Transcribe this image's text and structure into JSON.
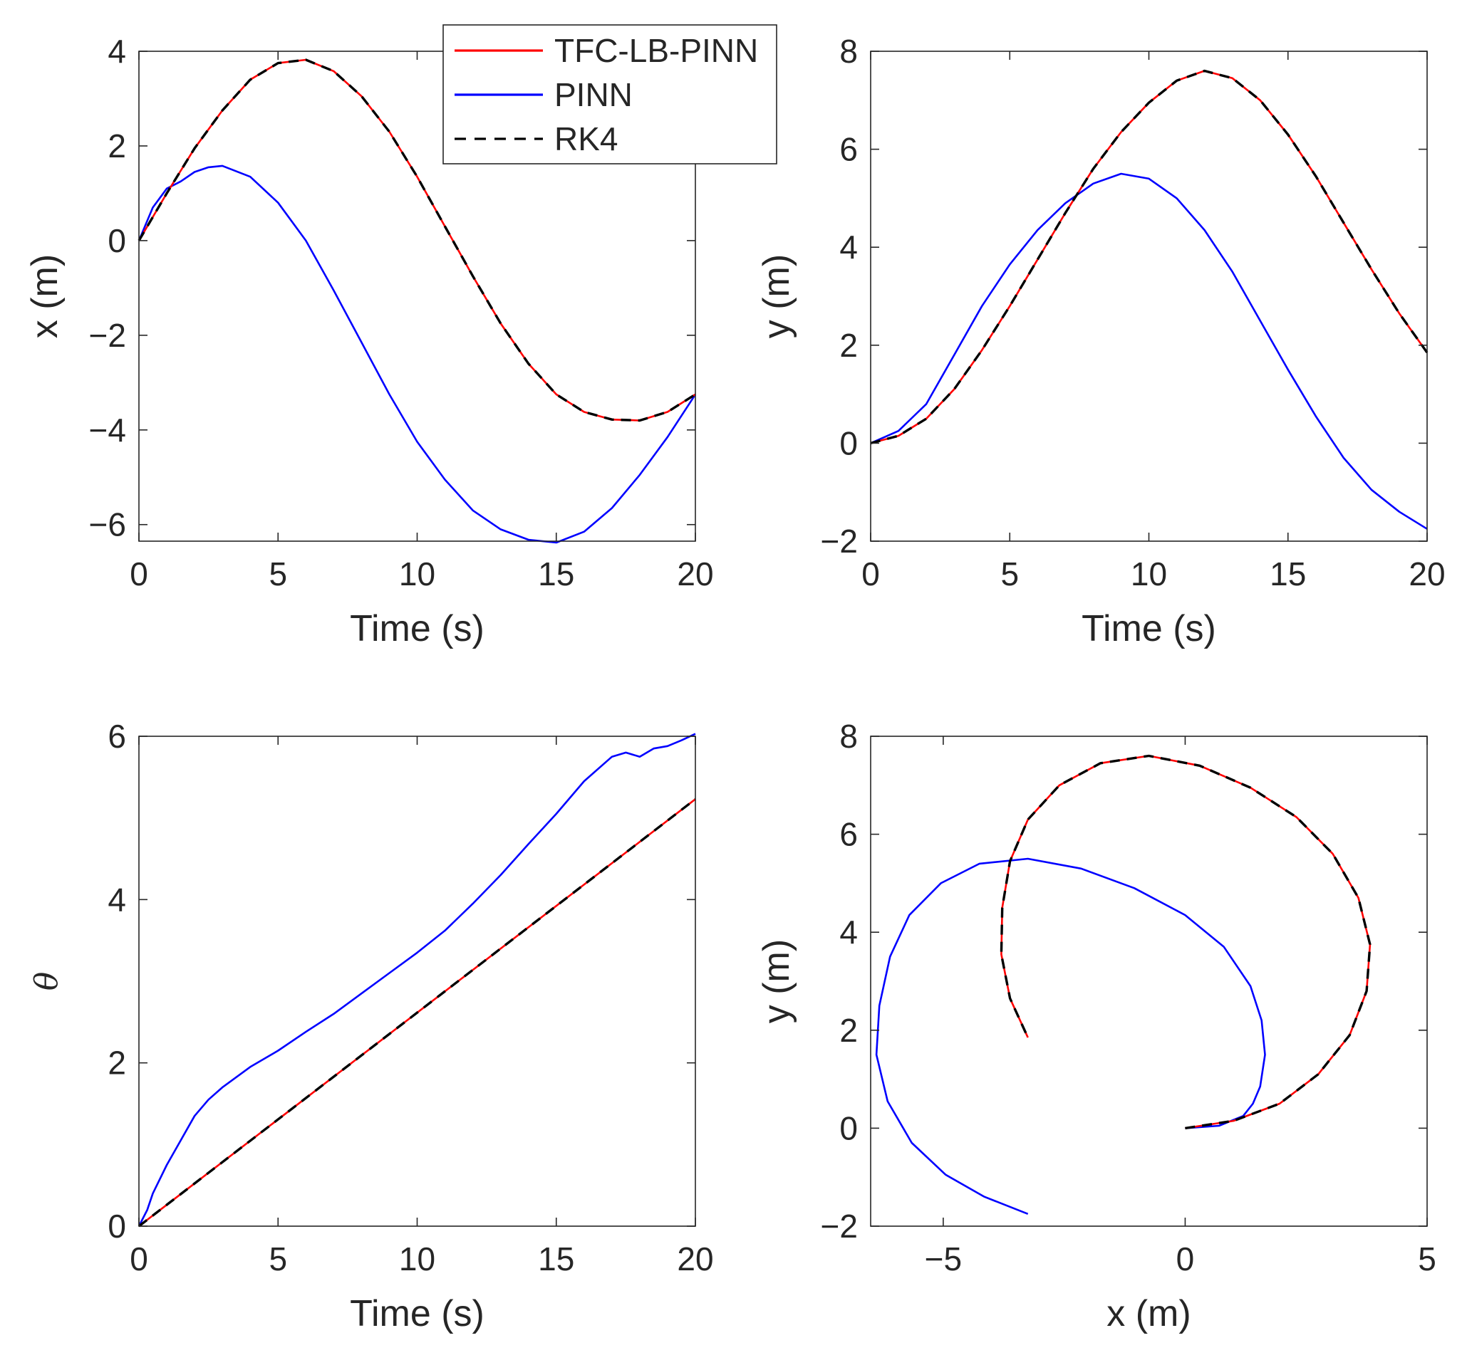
{
  "series_styles": [
    {
      "name": "TFC-LB-PINN",
      "color": "#ff0000",
      "dash": "solid"
    },
    {
      "name": "PINN",
      "color": "#0000ff",
      "dash": "solid"
    },
    {
      "name": "RK4",
      "color": "#000000",
      "dash": "dashed"
    }
  ],
  "chart_data": [
    {
      "type": "line",
      "id": "x-vs-time",
      "xlabel": "Time (s)",
      "ylabel": "x (m)",
      "xlim": [
        0,
        20
      ],
      "ylim": [
        -6.35,
        4
      ],
      "xticks": [
        0,
        5,
        10,
        15,
        20
      ],
      "yticks": [
        -6,
        -4,
        -2,
        0,
        2,
        4
      ],
      "xtick_labels": [
        "0",
        "5",
        "10",
        "15",
        "20"
      ],
      "ytick_labels": [
        "−6",
        "−4",
        "−2",
        "0",
        "2",
        "4"
      ],
      "legend": {
        "location": "top-right",
        "entries": [
          "TFC-LB-PINN",
          "PINN",
          "RK4"
        ]
      },
      "series": [
        {
          "name": "TFC-LB-PINN",
          "x": [
            0,
            1,
            2,
            3,
            4,
            5,
            6,
            7,
            8,
            9,
            10,
            11,
            12,
            13,
            14,
            15,
            16,
            17,
            18,
            19,
            20
          ],
          "y": [
            0,
            1.0,
            1.95,
            2.75,
            3.4,
            3.75,
            3.82,
            3.58,
            3.05,
            2.3,
            1.35,
            0.3,
            -0.75,
            -1.75,
            -2.6,
            -3.25,
            -3.62,
            -3.78,
            -3.8,
            -3.62,
            -3.25
          ]
        },
        {
          "name": "PINN",
          "x": [
            0,
            0.5,
            1,
            1.5,
            2,
            2.5,
            3,
            4,
            5,
            6,
            7,
            8,
            9,
            10,
            11,
            12,
            13,
            14,
            15,
            16,
            17,
            18,
            19,
            20
          ],
          "y": [
            0,
            0.7,
            1.1,
            1.25,
            1.45,
            1.55,
            1.58,
            1.35,
            0.8,
            0.0,
            -1.05,
            -2.15,
            -3.25,
            -4.25,
            -5.05,
            -5.7,
            -6.1,
            -6.32,
            -6.38,
            -6.15,
            -5.65,
            -4.95,
            -4.15,
            -3.25
          ]
        },
        {
          "name": "RK4",
          "x": [
            0,
            1,
            2,
            3,
            4,
            5,
            6,
            7,
            8,
            9,
            10,
            11,
            12,
            13,
            14,
            15,
            16,
            17,
            18,
            19,
            20
          ],
          "y": [
            0,
            1.0,
            1.95,
            2.75,
            3.4,
            3.75,
            3.82,
            3.58,
            3.05,
            2.3,
            1.35,
            0.3,
            -0.75,
            -1.75,
            -2.6,
            -3.25,
            -3.62,
            -3.78,
            -3.8,
            -3.62,
            -3.25
          ]
        }
      ]
    },
    {
      "type": "line",
      "id": "y-vs-time",
      "xlabel": "Time (s)",
      "ylabel": "y (m)",
      "xlim": [
        0,
        20
      ],
      "ylim": [
        -2,
        8
      ],
      "xticks": [
        0,
        5,
        10,
        15,
        20
      ],
      "yticks": [
        -2,
        0,
        2,
        4,
        6,
        8
      ],
      "xtick_labels": [
        "0",
        "5",
        "10",
        "15",
        "20"
      ],
      "ytick_labels": [
        "−2",
        "0",
        "2",
        "4",
        "6",
        "8"
      ],
      "series": [
        {
          "name": "TFC-LB-PINN",
          "x": [
            0,
            1,
            2,
            3,
            4,
            5,
            6,
            7,
            8,
            9,
            10,
            11,
            12,
            13,
            14,
            15,
            16,
            17,
            18,
            19,
            20
          ],
          "y": [
            0,
            0.15,
            0.5,
            1.1,
            1.9,
            2.8,
            3.75,
            4.7,
            5.6,
            6.35,
            6.95,
            7.4,
            7.6,
            7.45,
            7.0,
            6.3,
            5.45,
            4.5,
            3.55,
            2.65,
            1.85
          ]
        },
        {
          "name": "PINN",
          "x": [
            0,
            1,
            2,
            3,
            4,
            5,
            6,
            7,
            8,
            9,
            10,
            11,
            12,
            13,
            14,
            15,
            16,
            17,
            18,
            19,
            20
          ],
          "y": [
            0,
            0.25,
            0.8,
            1.8,
            2.8,
            3.65,
            4.35,
            4.9,
            5.3,
            5.5,
            5.4,
            5.0,
            4.35,
            3.5,
            2.5,
            1.5,
            0.55,
            -0.3,
            -0.95,
            -1.4,
            -1.75
          ]
        },
        {
          "name": "RK4",
          "x": [
            0,
            1,
            2,
            3,
            4,
            5,
            6,
            7,
            8,
            9,
            10,
            11,
            12,
            13,
            14,
            15,
            16,
            17,
            18,
            19,
            20
          ],
          "y": [
            0,
            0.15,
            0.5,
            1.1,
            1.9,
            2.8,
            3.75,
            4.7,
            5.6,
            6.35,
            6.95,
            7.4,
            7.6,
            7.45,
            7.0,
            6.3,
            5.45,
            4.5,
            3.55,
            2.65,
            1.85
          ]
        }
      ]
    },
    {
      "type": "line",
      "id": "theta-vs-time",
      "xlabel": "Time (s)",
      "ylabel": "θ",
      "xlim": [
        0,
        20
      ],
      "ylim": [
        0,
        6
      ],
      "xticks": [
        0,
        5,
        10,
        15,
        20
      ],
      "yticks": [
        0,
        2,
        4,
        6
      ],
      "xtick_labels": [
        "0",
        "5",
        "10",
        "15",
        "20"
      ],
      "ytick_labels": [
        "0",
        "2",
        "4",
        "6"
      ],
      "series": [
        {
          "name": "TFC-LB-PINN",
          "x": [
            0,
            20
          ],
          "y": [
            0,
            5.23
          ]
        },
        {
          "name": "PINN",
          "x": [
            0,
            0.3,
            0.5,
            1,
            1.5,
            2,
            2.5,
            3,
            4,
            5,
            6,
            7,
            8,
            9,
            10,
            11,
            12,
            13,
            14,
            15,
            16,
            17,
            17.5,
            18,
            18.5,
            19,
            19.5,
            20
          ],
          "y": [
            0,
            0.2,
            0.4,
            0.75,
            1.05,
            1.35,
            1.55,
            1.7,
            1.95,
            2.15,
            2.38,
            2.6,
            2.85,
            3.1,
            3.35,
            3.62,
            3.95,
            4.3,
            4.68,
            5.05,
            5.45,
            5.75,
            5.8,
            5.75,
            5.85,
            5.88,
            5.95,
            6.03
          ]
        },
        {
          "name": "RK4",
          "x": [
            0,
            20
          ],
          "y": [
            0,
            5.23
          ]
        }
      ]
    },
    {
      "type": "line",
      "id": "y-vs-x",
      "xlabel": "x (m)",
      "ylabel": "y (m)",
      "xlim": [
        -6.5,
        5
      ],
      "ylim": [
        -2,
        8
      ],
      "xticks": [
        -5,
        0,
        5
      ],
      "yticks": [
        -2,
        0,
        2,
        4,
        6,
        8
      ],
      "xtick_labels": [
        "−5",
        "0",
        "5"
      ],
      "ytick_labels": [
        "−2",
        "0",
        "2",
        "4",
        "6",
        "8"
      ],
      "series": [
        {
          "name": "TFC-LB-PINN",
          "x": [
            0,
            1.0,
            1.95,
            2.75,
            3.4,
            3.75,
            3.82,
            3.58,
            3.05,
            2.3,
            1.35,
            0.3,
            -0.75,
            -1.75,
            -2.6,
            -3.25,
            -3.62,
            -3.78,
            -3.8,
            -3.62,
            -3.25
          ],
          "y": [
            0,
            0.15,
            0.5,
            1.1,
            1.9,
            2.8,
            3.75,
            4.7,
            5.6,
            6.35,
            6.95,
            7.4,
            7.6,
            7.45,
            7.0,
            6.3,
            5.45,
            4.5,
            3.55,
            2.65,
            1.85
          ]
        },
        {
          "name": "PINN",
          "x": [
            0,
            0.7,
            1.2,
            1.4,
            1.55,
            1.65,
            1.58,
            1.35,
            0.8,
            0.0,
            -1.05,
            -2.15,
            -3.25,
            -4.25,
            -5.05,
            -5.7,
            -6.1,
            -6.32,
            -6.38,
            -6.15,
            -5.65,
            -4.95,
            -4.15,
            -3.25
          ],
          "y": [
            0,
            0.05,
            0.25,
            0.5,
            0.85,
            1.5,
            2.2,
            2.9,
            3.7,
            4.35,
            4.9,
            5.3,
            5.5,
            5.4,
            5.0,
            4.35,
            3.5,
            2.5,
            1.5,
            0.55,
            -0.3,
            -0.95,
            -1.4,
            -1.75
          ]
        },
        {
          "name": "RK4",
          "x": [
            0,
            1.0,
            1.95,
            2.75,
            3.4,
            3.75,
            3.82,
            3.58,
            3.05,
            2.3,
            1.35,
            0.3,
            -0.75,
            -1.75,
            -2.6,
            -3.25,
            -3.62,
            -3.78,
            -3.8,
            -3.62,
            -3.25
          ],
          "y": [
            0,
            0.15,
            0.5,
            1.1,
            1.9,
            2.8,
            3.75,
            4.7,
            5.6,
            6.35,
            6.95,
            7.4,
            7.6,
            7.45,
            7.0,
            6.3,
            5.45,
            4.5,
            3.55,
            2.65,
            1.85
          ]
        }
      ]
    }
  ]
}
